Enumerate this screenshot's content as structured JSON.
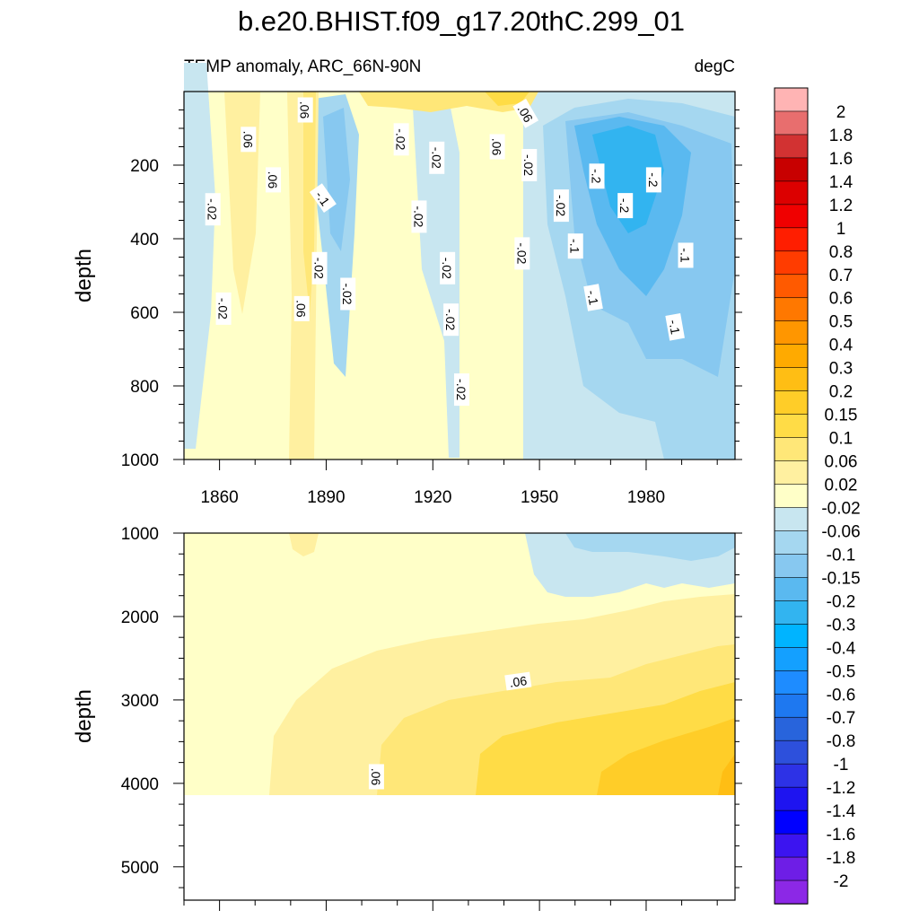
{
  "chart_data": {
    "type": "heatmap",
    "title": "b.e20.BHIST.f09_g17.20thC.299_01",
    "subtitle_left": "TEMP anomaly, ARC_66N-90N",
    "subtitle_right": "degC",
    "x_axis": {
      "range": [
        1850,
        2005
      ],
      "ticks": [
        1860,
        1890,
        1920,
        1950,
        1980
      ],
      "tick_labels": [
        "1860",
        "1890",
        "1920",
        "1950",
        "1980"
      ]
    },
    "panels": [
      {
        "name": "upper",
        "ylabel": "depth",
        "ylim": [
          0,
          1000
        ],
        "y_reversed": true,
        "y_ticks": [
          200,
          400,
          600,
          800,
          1000
        ],
        "y_tick_labels": [
          "200",
          "400",
          "600",
          "800",
          "1000"
        ],
        "contour_labels": [
          {
            "x": 1884,
            "depth": 50,
            "text": ".06",
            "rot": 90
          },
          {
            "x": 1868,
            "depth": 130,
            "text": ".06",
            "rot": 90
          },
          {
            "x": 1875,
            "depth": 240,
            "text": ".06",
            "rot": 90
          },
          {
            "x": 1858,
            "depth": 320,
            "text": "-.02",
            "rot": 90
          },
          {
            "x": 1889,
            "depth": 290,
            "text": "-.1",
            "rot": 55
          },
          {
            "x": 1911,
            "depth": 130,
            "text": "-.02",
            "rot": 90
          },
          {
            "x": 1921,
            "depth": 180,
            "text": "-.02",
            "rot": 90
          },
          {
            "x": 1916,
            "depth": 340,
            "text": "-.02",
            "rot": 90
          },
          {
            "x": 1938,
            "depth": 150,
            "text": ".06",
            "rot": 90
          },
          {
            "x": 1896,
            "depth": 550,
            "text": "-.02",
            "rot": 90
          },
          {
            "x": 1888,
            "depth": 480,
            "text": "-.02",
            "rot": 90
          },
          {
            "x": 1883,
            "depth": 590,
            "text": ".06",
            "rot": 90
          },
          {
            "x": 1861,
            "depth": 590,
            "text": "-.02",
            "rot": 90
          },
          {
            "x": 1924,
            "depth": 480,
            "text": "-.02",
            "rot": 90
          },
          {
            "x": 1925,
            "depth": 620,
            "text": "-.02",
            "rot": 90
          },
          {
            "x": 1928,
            "depth": 810,
            "text": "-.02",
            "rot": 90
          },
          {
            "x": 1945,
            "depth": 440,
            "text": "-.02",
            "rot": 90
          },
          {
            "x": 1946,
            "depth": 60,
            "text": ".06",
            "rot": 60
          },
          {
            "x": 1947,
            "depth": 200,
            "text": "-.02",
            "rot": 90
          },
          {
            "x": 1956,
            "depth": 310,
            "text": "-.02",
            "rot": 90
          },
          {
            "x": 1960,
            "depth": 420,
            "text": "-.1",
            "rot": 90
          },
          {
            "x": 1965,
            "depth": 560,
            "text": "-.1",
            "rot": 80
          },
          {
            "x": 1966,
            "depth": 230,
            "text": "-.2",
            "rot": 90
          },
          {
            "x": 1974,
            "depth": 310,
            "text": "-.2",
            "rot": 90
          },
          {
            "x": 1982,
            "depth": 240,
            "text": "-.2",
            "rot": 90
          },
          {
            "x": 1991,
            "depth": 445,
            "text": "-.1",
            "rot": 90
          },
          {
            "x": 1988,
            "depth": 640,
            "text": "-.1",
            "rot": 80
          }
        ]
      },
      {
        "name": "lower",
        "ylabel": "depth",
        "ylim": [
          1000,
          5400
        ],
        "y_reversed": true,
        "y_ticks": [
          1000,
          2000,
          3000,
          4000,
          5000
        ],
        "y_tick_labels": [
          "1000",
          "2000",
          "3000",
          "4000",
          "5000"
        ],
        "ocean_floor_depth": 4120,
        "contour_labels": [
          {
            "x": 1944,
            "depth": 2780,
            "text": ".06",
            "rot": -8
          },
          {
            "x": 1904,
            "depth": 3920,
            "text": ".06",
            "rot": 90
          }
        ]
      }
    ],
    "colorbar": {
      "levels": [
        "2",
        "1.8",
        "1.6",
        "1.4",
        "1.2",
        "1",
        "0.8",
        "0.7",
        "0.6",
        "0.5",
        "0.4",
        "0.3",
        "0.2",
        "0.15",
        "0.1",
        "0.06",
        "0.02",
        "-0.02",
        "-0.06",
        "-0.1",
        "-0.15",
        "-0.2",
        "-0.3",
        "-0.4",
        "-0.5",
        "-0.6",
        "-0.7",
        "-0.8",
        "-1",
        "-1.2",
        "-1.4",
        "-1.6",
        "-1.8",
        "-2"
      ],
      "colors": [
        "#ffb4b4",
        "#e86e6e",
        "#d23232",
        "#c80000",
        "#dc0000",
        "#f00000",
        "#ff1e00",
        "#ff3c00",
        "#ff5a00",
        "#ff7800",
        "#ff9600",
        "#ffaa00",
        "#ffbe14",
        "#ffcd28",
        "#ffdc46",
        "#ffe778",
        "#fff0a0",
        "#ffffc8",
        "#c8e6f0",
        "#a5d7f0",
        "#87c8f0",
        "#5ab9f0",
        "#32b4f0",
        "#00b4ff",
        "#14a0ff",
        "#1e8cff",
        "#1e78f0",
        "#2864dc",
        "#2d50dc",
        "#2d32e6",
        "#1e14f0",
        "#0000ff",
        "#3c14f0",
        "#6e1ee6",
        "#8c28e6"
      ]
    }
  }
}
